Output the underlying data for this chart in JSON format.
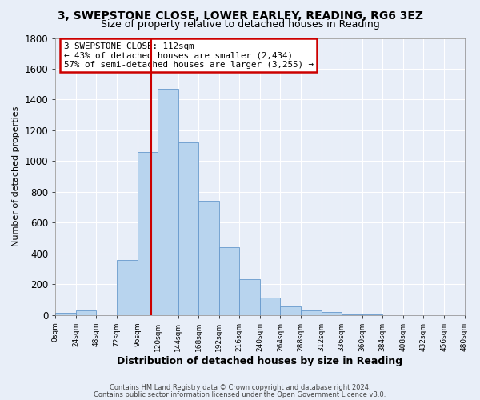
{
  "title_line1": "3, SWEPSTONE CLOSE, LOWER EARLEY, READING, RG6 3EZ",
  "title_line2": "Size of property relative to detached houses in Reading",
  "xlabel": "Distribution of detached houses by size in Reading",
  "ylabel": "Number of detached properties",
  "bar_edges": [
    0,
    24,
    48,
    72,
    96,
    120,
    144,
    168,
    192,
    216,
    240,
    264,
    288,
    312,
    336,
    360,
    384,
    408,
    432,
    456
  ],
  "bar_heights": [
    15,
    30,
    0,
    355,
    1060,
    1470,
    1120,
    740,
    440,
    230,
    110,
    55,
    30,
    18,
    5,
    2,
    0,
    0,
    0,
    0
  ],
  "bar_color": "#b8d4ee",
  "bar_edge_color": "#6699cc",
  "vline_x": 112,
  "vline_color": "#cc0000",
  "annotation_line1": "3 SWEPSTONE CLOSE: 112sqm",
  "annotation_line2": "← 43% of detached houses are smaller (2,434)",
  "annotation_line3": "57% of semi-detached houses are larger (3,255) →",
  "ylim": [
    0,
    1800
  ],
  "yticks": [
    0,
    200,
    400,
    600,
    800,
    1000,
    1200,
    1400,
    1600,
    1800
  ],
  "xtick_labels": [
    "0sqm",
    "24sqm",
    "48sqm",
    "72sqm",
    "96sqm",
    "120sqm",
    "144sqm",
    "168sqm",
    "192sqm",
    "216sqm",
    "240sqm",
    "264sqm",
    "288sqm",
    "312sqm",
    "336sqm",
    "360sqm",
    "384sqm",
    "408sqm",
    "432sqm",
    "456sqm",
    "480sqm"
  ],
  "footer_line1": "Contains HM Land Registry data © Crown copyright and database right 2024.",
  "footer_line2": "Contains public sector information licensed under the Open Government Licence v3.0.",
  "background_color": "#e8eef8",
  "plot_bg_color": "#e8eef8",
  "grid_color": "#ffffff",
  "title1_fontsize": 10,
  "title2_fontsize": 9
}
